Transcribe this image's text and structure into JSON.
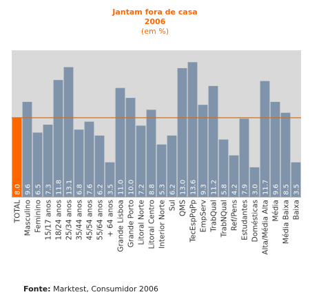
{
  "chart_data": {
    "type": "bar",
    "title": "Jantam fora de casa",
    "subtitle_year": "2006",
    "subtitle_unit": "(em %)",
    "categories": [
      "TOTAL",
      "Masculino",
      "Feminino",
      "15/17 anos",
      "18/24 anos",
      "25/34 anos",
      "35/44 anos",
      "45/54 anos",
      "55/64 anos",
      "+ 64 anos",
      "Grande Lisboa",
      "Grande Porto",
      "Litoral Norte",
      "Litoral Centro",
      "Interior Norte",
      "Sul",
      "QMS",
      "TecEspPqPp",
      "EmpServ",
      "TrabQual",
      "TrabNQual",
      "Ref/Pens",
      "Estudantes",
      "Domésticas",
      "Alta/Média Alta",
      "Média",
      "Média Baixa",
      "Baixa"
    ],
    "values": [
      8.0,
      9.6,
      6.5,
      7.3,
      11.8,
      13.1,
      6.8,
      7.6,
      6.2,
      3.5,
      11.0,
      10.0,
      7.2,
      8.8,
      5.3,
      6.2,
      13.0,
      13.6,
      9.3,
      11.2,
      5.8,
      4.2,
      7.9,
      3.0,
      11.7,
      9.6,
      8.5,
      3.5
    ],
    "value_labels": [
      "8.0",
      "9.6",
      "6.5",
      "7.3",
      "11.8",
      "13.1",
      "6.8",
      "7.6",
      "6.2",
      "3.5",
      "11.0",
      "10.0",
      "7.2",
      "8.8",
      "5.3",
      "6.2",
      "13.0",
      "13.6",
      "9.3",
      "11.2",
      "5.8",
      "4.2",
      "7.9",
      "3.0",
      "11.7",
      "9.6",
      "8.5",
      "3.5"
    ],
    "reference_line_value": 8.0,
    "highlight_index": 0,
    "ylim": [
      0,
      14.8
    ],
    "grid": false,
    "legend": "none",
    "colors": {
      "bar": "#7f94aa",
      "highlight_bar": "#ff6600",
      "reference_line": "#c8722a",
      "title": "#ff6600",
      "plot_background": "#d9d9d9",
      "axis": "#999999"
    }
  },
  "source": {
    "label": "Fonte:",
    "text": "Marktest, Consumidor 2006"
  }
}
